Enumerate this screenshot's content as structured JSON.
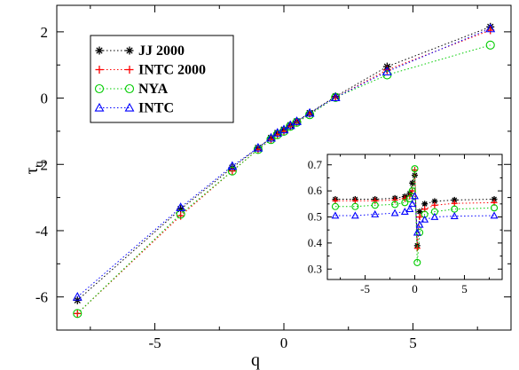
{
  "chart_data": [
    {
      "type": "line",
      "xlabel": "q",
      "ylabel_main": "τ",
      "ylabel_sub": "q",
      "xlim": [
        -8.8,
        8.8
      ],
      "ylim": [
        -7,
        2.8
      ],
      "xticks": [
        -5,
        0,
        5
      ],
      "xtick_labels": [
        "-5",
        "0",
        "5"
      ],
      "yticks": [
        2,
        0,
        -2,
        -4,
        -6
      ],
      "ytick_labels": [
        "2",
        "0",
        "-2",
        "-4",
        "-6"
      ],
      "legend_position": "top-left",
      "series": [
        {
          "name": "JJ 2000",
          "color": "#000000",
          "marker": "asterisk",
          "x": [
            -8,
            -4,
            -2,
            -1,
            -0.5,
            -0.25,
            0,
            0.25,
            0.5,
            1,
            2,
            4,
            8
          ],
          "y": [
            -6.1,
            -3.35,
            -2.1,
            -1.5,
            -1.2,
            -1.05,
            -0.95,
            -0.82,
            -0.7,
            -0.45,
            0.05,
            0.95,
            2.15
          ]
        },
        {
          "name": "INTC 2000",
          "color": "#ff0000",
          "marker": "plus",
          "x": [
            -8,
            -4,
            -2,
            -1,
            -0.5,
            -0.25,
            0,
            0.25,
            0.5,
            1,
            2,
            4,
            8
          ],
          "y": [
            -6.5,
            -3.55,
            -2.2,
            -1.55,
            -1.25,
            -1.1,
            -1.0,
            -0.85,
            -0.72,
            -0.47,
            0.02,
            0.85,
            2.05
          ]
        },
        {
          "name": "NYA",
          "color": "#00cc00",
          "marker": "circle",
          "x": [
            -8,
            -4,
            -2,
            -1,
            -0.5,
            -0.25,
            0,
            0.25,
            0.5,
            1,
            2,
            4,
            8
          ],
          "y": [
            -6.5,
            -3.5,
            -2.2,
            -1.55,
            -1.25,
            -1.1,
            -1.0,
            -0.85,
            -0.73,
            -0.5,
            0.02,
            0.7,
            1.6
          ]
        },
        {
          "name": "INTC",
          "color": "#0000ff",
          "marker": "triangle",
          "x": [
            -8,
            -4,
            -2,
            -1,
            -0.5,
            -0.25,
            0,
            0.25,
            0.5,
            1,
            2,
            4,
            8
          ],
          "y": [
            -6.0,
            -3.3,
            -2.05,
            -1.5,
            -1.2,
            -1.05,
            -0.95,
            -0.82,
            -0.7,
            -0.45,
            0.02,
            0.8,
            2.1
          ]
        }
      ]
    },
    {
      "type": "line",
      "role": "inset",
      "xlim": [
        -8.8,
        8.8
      ],
      "ylim": [
        0.26,
        0.74
      ],
      "xticks": [
        -5,
        0,
        5
      ],
      "xtick_labels": [
        "-5",
        "0",
        "5"
      ],
      "yticks": [
        0.3,
        0.4,
        0.5,
        0.6,
        0.7
      ],
      "ytick_labels": [
        "0.3",
        "0.4",
        "0.5",
        "0.6",
        "0.7"
      ],
      "series": [
        {
          "name": "JJ 2000",
          "color": "#000000",
          "marker": "asterisk",
          "x": [
            -8,
            -6,
            -4,
            -2,
            -1,
            -0.5,
            -0.25,
            0,
            0.25,
            0.5,
            1,
            2,
            4,
            8
          ],
          "y": [
            0.568,
            0.568,
            0.568,
            0.572,
            0.578,
            0.59,
            0.63,
            0.66,
            0.39,
            0.52,
            0.55,
            0.56,
            0.565,
            0.568
          ]
        },
        {
          "name": "INTC 2000",
          "color": "#ff0000",
          "marker": "plus",
          "x": [
            -8,
            -6,
            -4,
            -2,
            -1,
            -0.5,
            -0.25,
            0,
            0.25,
            0.5,
            1,
            2,
            4,
            8
          ],
          "y": [
            0.562,
            0.562,
            0.562,
            0.565,
            0.57,
            0.58,
            0.6,
            0.68,
            0.38,
            0.5,
            0.53,
            0.545,
            0.552,
            0.555
          ]
        },
        {
          "name": "NYA",
          "color": "#00cc00",
          "marker": "circle",
          "x": [
            -8,
            -6,
            -4,
            -2,
            -1,
            -0.5,
            -0.25,
            0,
            0.25,
            0.5,
            1,
            2,
            4,
            8
          ],
          "y": [
            0.54,
            0.54,
            0.545,
            0.548,
            0.555,
            0.57,
            0.6,
            0.685,
            0.325,
            0.44,
            0.51,
            0.52,
            0.53,
            0.535
          ]
        },
        {
          "name": "INTC",
          "color": "#0000ff",
          "marker": "triangle",
          "x": [
            -8,
            -6,
            -4,
            -2,
            -1,
            -0.5,
            -0.25,
            0,
            0.25,
            0.5,
            1,
            2,
            4,
            8
          ],
          "y": [
            0.505,
            0.505,
            0.51,
            0.515,
            0.52,
            0.53,
            0.55,
            0.58,
            0.44,
            0.47,
            0.49,
            0.5,
            0.503,
            0.505
          ]
        }
      ]
    }
  ]
}
